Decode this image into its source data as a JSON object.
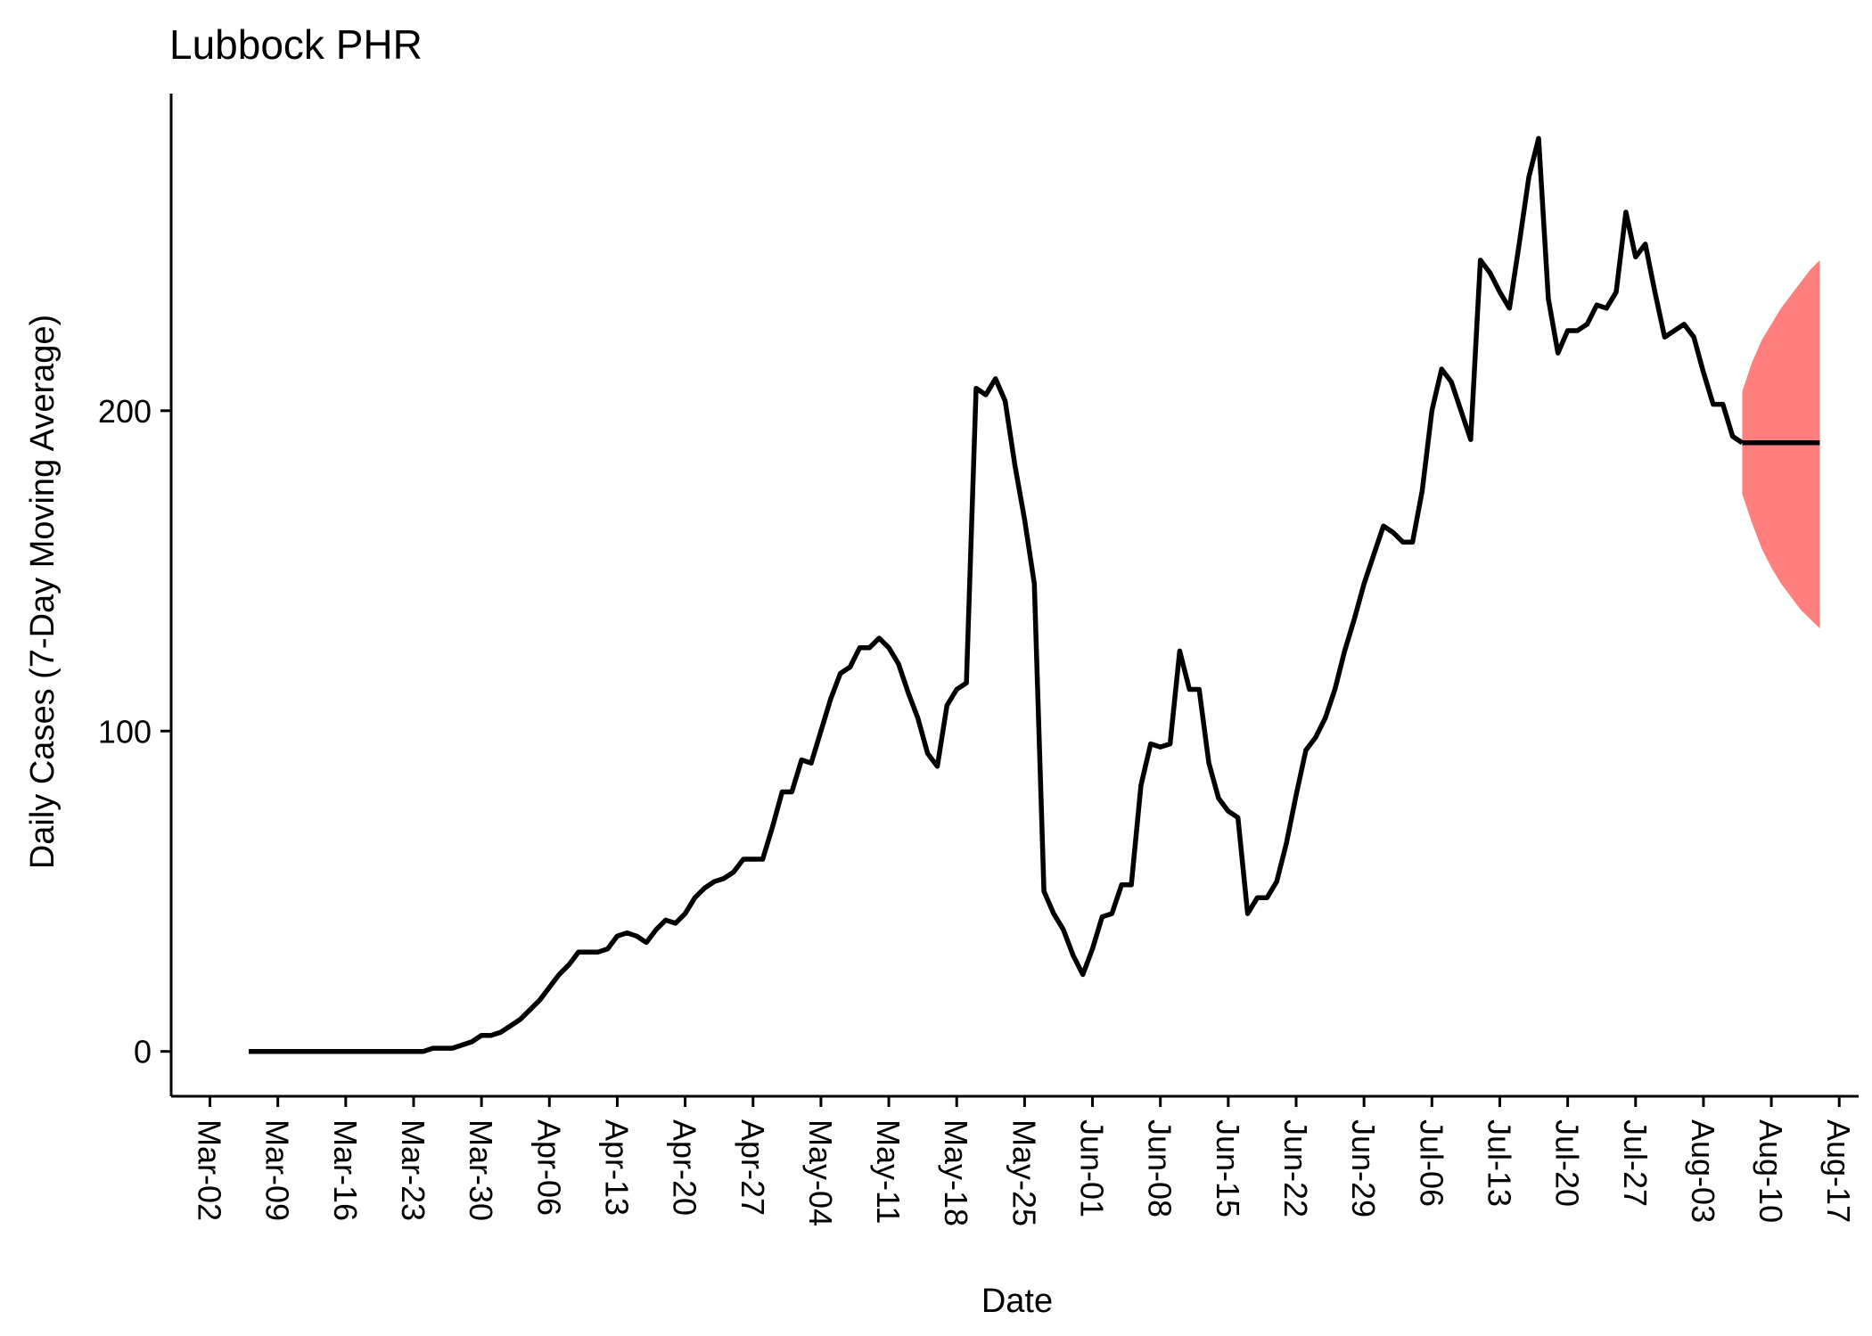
{
  "chart_data": {
    "type": "line",
    "title": "Lubbock PHR",
    "xlabel": "Date",
    "ylabel": "Daily Cases (7-Day Moving Average)",
    "x_ticks": [
      "Mar-02",
      "Mar-09",
      "Mar-16",
      "Mar-23",
      "Mar-30",
      "Apr-06",
      "Apr-13",
      "Apr-20",
      "Apr-27",
      "May-04",
      "May-11",
      "May-18",
      "May-25",
      "Jun-01",
      "Jun-08",
      "Jun-15",
      "Jun-22",
      "Jun-29",
      "Jul-06",
      "Jul-13",
      "Jul-20",
      "Jul-27",
      "Aug-03",
      "Aug-10",
      "Aug-17"
    ],
    "y_ticks": [
      0,
      100,
      200
    ],
    "xlim": [
      "2020-02-27",
      "2020-08-19"
    ],
    "ylim": [
      -14,
      299
    ],
    "grid": false,
    "legend": "none",
    "series": [
      {
        "color": "#000000",
        "points": [
          [
            "2020-03-06",
            0
          ],
          [
            "2020-03-10",
            0
          ],
          [
            "2020-03-15",
            0
          ],
          [
            "2020-03-20",
            0
          ],
          [
            "2020-03-24",
            0
          ],
          [
            "2020-03-25",
            1
          ],
          [
            "2020-03-26",
            1
          ],
          [
            "2020-03-27",
            1
          ],
          [
            "2020-03-28",
            2
          ],
          [
            "2020-03-29",
            3
          ],
          [
            "2020-03-30",
            5
          ],
          [
            "2020-03-31",
            5
          ],
          [
            "2020-04-01",
            6
          ],
          [
            "2020-04-02",
            8
          ],
          [
            "2020-04-03",
            10
          ],
          [
            "2020-04-04",
            13
          ],
          [
            "2020-04-05",
            16
          ],
          [
            "2020-04-06",
            20
          ],
          [
            "2020-04-07",
            24
          ],
          [
            "2020-04-08",
            27
          ],
          [
            "2020-04-09",
            31
          ],
          [
            "2020-04-10",
            31
          ],
          [
            "2020-04-11",
            31
          ],
          [
            "2020-04-12",
            32
          ],
          [
            "2020-04-13",
            36
          ],
          [
            "2020-04-14",
            37
          ],
          [
            "2020-04-15",
            36
          ],
          [
            "2020-04-16",
            34
          ],
          [
            "2020-04-17",
            38
          ],
          [
            "2020-04-18",
            41
          ],
          [
            "2020-04-19",
            40
          ],
          [
            "2020-04-20",
            43
          ],
          [
            "2020-04-21",
            48
          ],
          [
            "2020-04-22",
            51
          ],
          [
            "2020-04-23",
            53
          ],
          [
            "2020-04-24",
            54
          ],
          [
            "2020-04-25",
            56
          ],
          [
            "2020-04-26",
            60
          ],
          [
            "2020-04-27",
            60
          ],
          [
            "2020-04-28",
            60
          ],
          [
            "2020-04-29",
            70
          ],
          [
            "2020-04-30",
            81
          ],
          [
            "2020-05-01",
            81
          ],
          [
            "2020-05-02",
            91
          ],
          [
            "2020-05-03",
            90
          ],
          [
            "2020-05-04",
            100
          ],
          [
            "2020-05-05",
            110
          ],
          [
            "2020-05-06",
            118
          ],
          [
            "2020-05-07",
            120
          ],
          [
            "2020-05-08",
            126
          ],
          [
            "2020-05-09",
            126
          ],
          [
            "2020-05-10",
            129
          ],
          [
            "2020-05-11",
            126
          ],
          [
            "2020-05-12",
            121
          ],
          [
            "2020-05-13",
            112
          ],
          [
            "2020-05-14",
            104
          ],
          [
            "2020-05-15",
            93
          ],
          [
            "2020-05-16",
            89
          ],
          [
            "2020-05-17",
            108
          ],
          [
            "2020-05-18",
            113
          ],
          [
            "2020-05-19",
            115
          ],
          [
            "2020-05-20",
            207
          ],
          [
            "2020-05-21",
            205
          ],
          [
            "2020-05-22",
            210
          ],
          [
            "2020-05-23",
            203
          ],
          [
            "2020-05-24",
            183
          ],
          [
            "2020-05-25",
            166
          ],
          [
            "2020-05-26",
            146
          ],
          [
            "2020-05-27",
            50
          ],
          [
            "2020-05-28",
            43
          ],
          [
            "2020-05-29",
            38
          ],
          [
            "2020-05-30",
            30
          ],
          [
            "2020-05-31",
            24
          ],
          [
            "2020-06-01",
            32
          ],
          [
            "2020-06-02",
            42
          ],
          [
            "2020-06-03",
            43
          ],
          [
            "2020-06-04",
            52
          ],
          [
            "2020-06-05",
            52
          ],
          [
            "2020-06-06",
            83
          ],
          [
            "2020-06-07",
            96
          ],
          [
            "2020-06-08",
            95
          ],
          [
            "2020-06-09",
            96
          ],
          [
            "2020-06-10",
            125
          ],
          [
            "2020-06-11",
            113
          ],
          [
            "2020-06-12",
            113
          ],
          [
            "2020-06-13",
            90
          ],
          [
            "2020-06-14",
            79
          ],
          [
            "2020-06-15",
            75
          ],
          [
            "2020-06-16",
            73
          ],
          [
            "2020-06-17",
            43
          ],
          [
            "2020-06-18",
            48
          ],
          [
            "2020-06-19",
            48
          ],
          [
            "2020-06-20",
            53
          ],
          [
            "2020-06-21",
            65
          ],
          [
            "2020-06-22",
            80
          ],
          [
            "2020-06-23",
            94
          ],
          [
            "2020-06-24",
            98
          ],
          [
            "2020-06-25",
            104
          ],
          [
            "2020-06-26",
            113
          ],
          [
            "2020-06-27",
            125
          ],
          [
            "2020-06-28",
            135
          ],
          [
            "2020-06-29",
            146
          ],
          [
            "2020-06-30",
            155
          ],
          [
            "2020-07-01",
            164
          ],
          [
            "2020-07-02",
            162
          ],
          [
            "2020-07-03",
            159
          ],
          [
            "2020-07-04",
            159
          ],
          [
            "2020-07-05",
            175
          ],
          [
            "2020-07-06",
            200
          ],
          [
            "2020-07-07",
            213
          ],
          [
            "2020-07-08",
            209
          ],
          [
            "2020-07-09",
            200
          ],
          [
            "2020-07-10",
            191
          ],
          [
            "2020-07-11",
            247
          ],
          [
            "2020-07-12",
            243
          ],
          [
            "2020-07-13",
            237
          ],
          [
            "2020-07-14",
            232
          ],
          [
            "2020-07-15",
            252
          ],
          [
            "2020-07-16",
            273
          ],
          [
            "2020-07-17",
            285
          ],
          [
            "2020-07-18",
            235
          ],
          [
            "2020-07-19",
            218
          ],
          [
            "2020-07-20",
            225
          ],
          [
            "2020-07-21",
            225
          ],
          [
            "2020-07-22",
            227
          ],
          [
            "2020-07-23",
            233
          ],
          [
            "2020-07-24",
            232
          ],
          [
            "2020-07-25",
            237
          ],
          [
            "2020-07-26",
            262
          ],
          [
            "2020-07-27",
            248
          ],
          [
            "2020-07-28",
            252
          ],
          [
            "2020-07-29",
            237
          ],
          [
            "2020-07-30",
            223
          ],
          [
            "2020-07-31",
            225
          ],
          [
            "2020-08-01",
            227
          ],
          [
            "2020-08-02",
            223
          ],
          [
            "2020-08-03",
            212
          ],
          [
            "2020-08-04",
            202
          ],
          [
            "2020-08-05",
            202
          ],
          [
            "2020-08-06",
            192
          ],
          [
            "2020-08-07",
            190
          ]
        ]
      },
      {
        "type": "forecast",
        "color": "#000000",
        "points": [
          [
            "2020-08-07",
            190
          ],
          [
            "2020-08-15",
            190
          ]
        ]
      }
    ],
    "band": {
      "color": "#ff7f7f",
      "dates": [
        "2020-08-07",
        "2020-08-08",
        "2020-08-09",
        "2020-08-10",
        "2020-08-11",
        "2020-08-12",
        "2020-08-13",
        "2020-08-14",
        "2020-08-15"
      ],
      "upper": [
        206,
        215,
        222,
        227,
        232,
        236,
        240,
        244,
        247
      ],
      "lower": [
        174,
        165,
        157,
        151,
        146,
        142,
        138,
        135,
        132
      ]
    }
  }
}
